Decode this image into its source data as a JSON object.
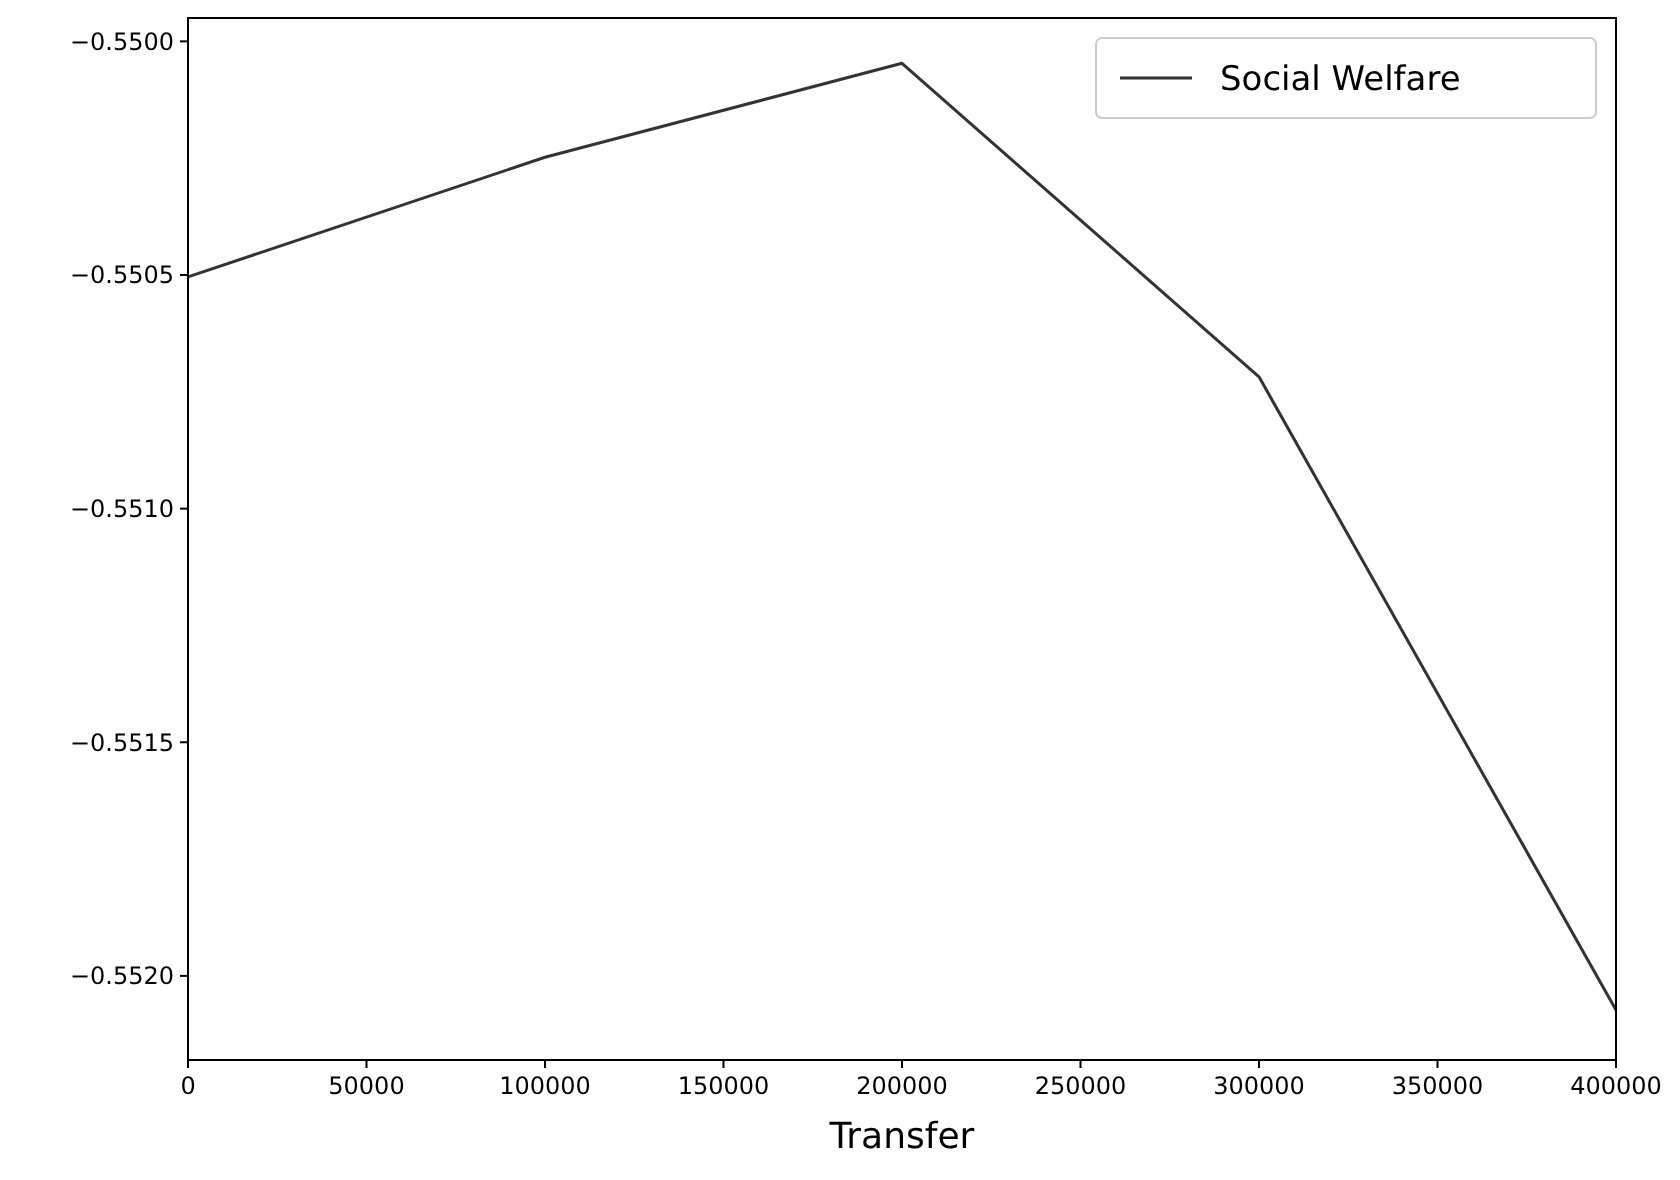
{
  "chart_data": {
    "type": "line",
    "xlabel": "Transfer",
    "x": [
      0,
      100000,
      200000,
      300000,
      400000
    ],
    "series": [
      {
        "name": "Social Welfare",
        "color": "#333333",
        "values": [
          -0.550504,
          -0.550248,
          -0.550047,
          -0.550718,
          -0.552073
        ]
      }
    ],
    "xlim": [
      0,
      400000
    ],
    "xticks": [
      0,
      50000,
      100000,
      150000,
      200000,
      250000,
      300000,
      350000,
      400000
    ],
    "ylim": [
      -0.55218,
      -0.54995
    ],
    "yticks": [
      {
        "value": -0.552,
        "label": "−0.5520"
      },
      {
        "value": -0.5515,
        "label": "−0.5515"
      },
      {
        "value": -0.551,
        "label": "−0.5510"
      },
      {
        "value": -0.5505,
        "label": "−0.5505"
      },
      {
        "value": -0.55,
        "label": "−0.5500"
      }
    ],
    "legend": "top right",
    "grid": false,
    "marker": "none",
    "line_style": "solid"
  }
}
